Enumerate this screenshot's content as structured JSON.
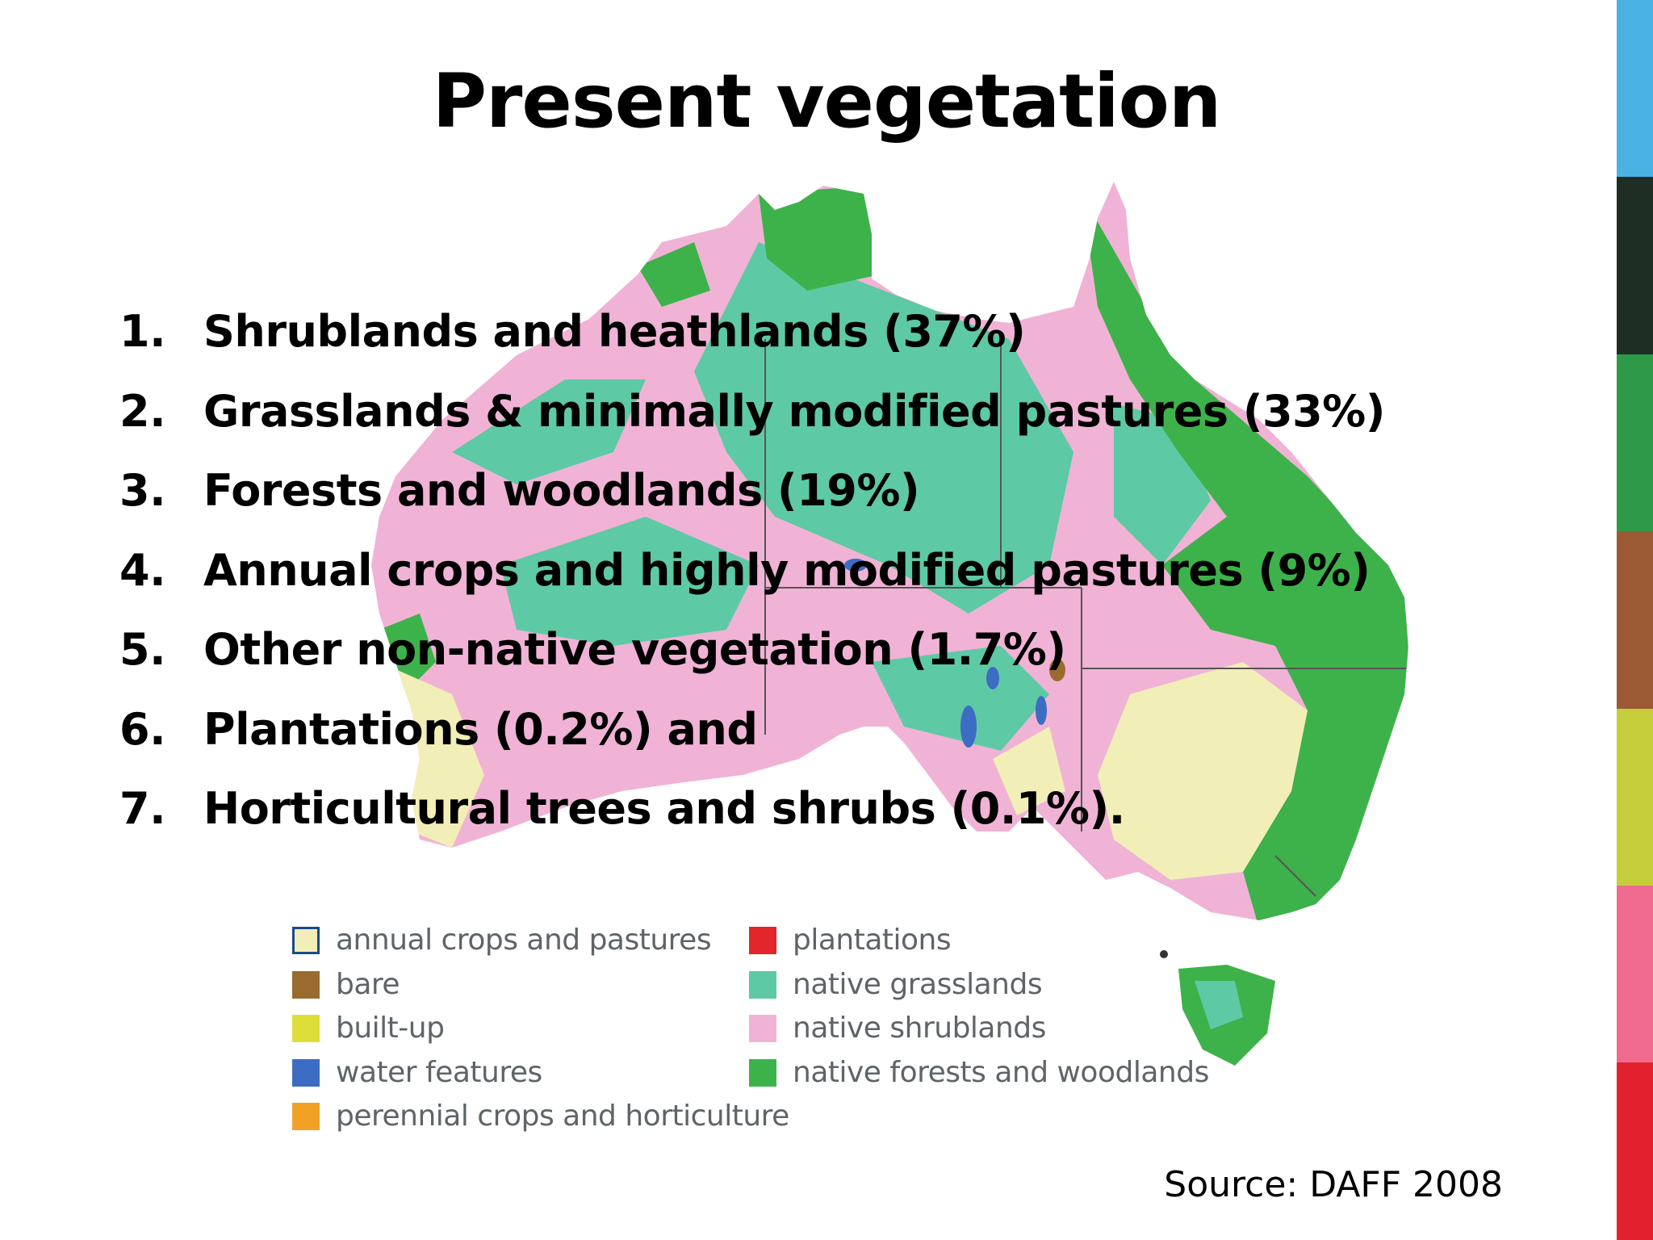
{
  "slide": {
    "title": "Present vegetation",
    "items": [
      {
        "num": "1.",
        "text": "Shrublands and heathlands (37%)"
      },
      {
        "num": "2.",
        "text": "Grasslands & minimally modified pastures (33%)"
      },
      {
        "num": "3.",
        "text": "Forests and woodlands (19%)"
      },
      {
        "num": "4.",
        "text": "Annual crops and highly modified pastures (9%)"
      },
      {
        "num": "5.",
        "text": "Other non-native vegetation (1.7%)"
      },
      {
        "num": "6.",
        "text": "Plantations (0.2%) and"
      },
      {
        "num": "7.",
        "text": "Horticultural trees and shrubs (0.1%)."
      }
    ],
    "source": "Source: DAFF 2008"
  },
  "legend": {
    "col1": [
      {
        "label": "annual crops and pastures",
        "color": "#f2eeb8",
        "border": "#1a4a8a"
      },
      {
        "label": "bare",
        "color": "#9b6a2f"
      },
      {
        "label": "built-up",
        "color": "#dede3a"
      },
      {
        "label": "water features",
        "color": "#3c6dc2"
      },
      {
        "label": "perennial crops and horticulture",
        "color": "#f2a127"
      }
    ],
    "col2": [
      {
        "label": "plantations",
        "color": "#e3262b"
      },
      {
        "label": "native grasslands",
        "color": "#5ec9a5"
      },
      {
        "label": "native shrublands",
        "color": "#f0b3d5"
      },
      {
        "label": "native forests and woodlands",
        "color": "#3db24a"
      }
    ]
  },
  "colors": {
    "accent_bar": [
      "#4bb3e3",
      "#1f2e24",
      "#2e9a48",
      "#9b5a33",
      "#c6cd3a",
      "#f06a8f",
      "#e3212e"
    ],
    "native_forests": "#3db24a",
    "native_grasslands": "#5ec9a5",
    "native_shrublands": "#f0b3d5",
    "annual_crops": "#f2eeb8"
  }
}
